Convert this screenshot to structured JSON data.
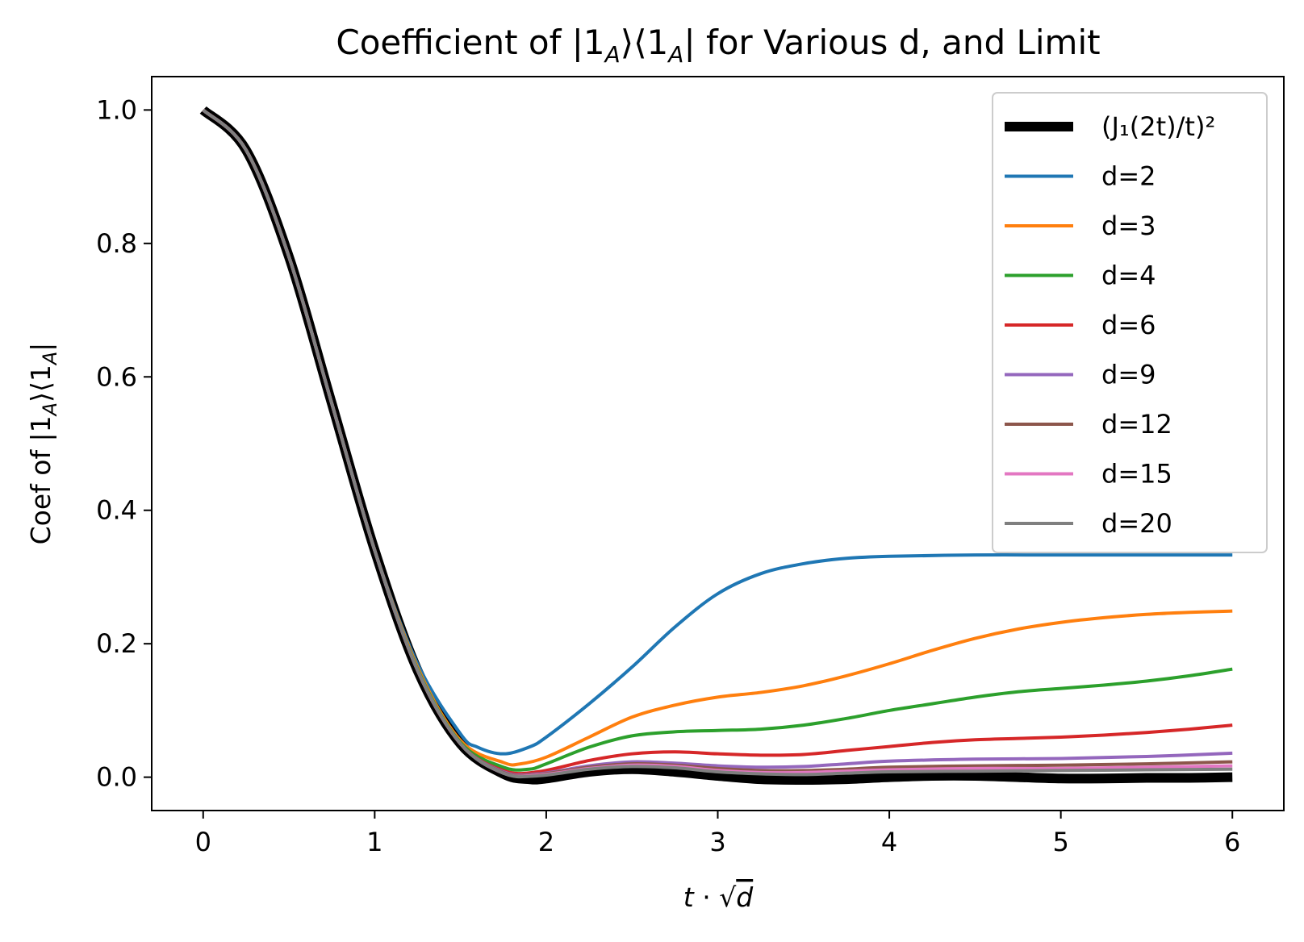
{
  "chart_data": {
    "type": "line",
    "title": "Coefficient of |1ₐ⟩⟨1ₐ| for Various d, and Limit",
    "xlabel": "t · √d",
    "ylabel": "Coef of |1ₐ⟩⟨1ₐ|",
    "xlim": [
      -0.3,
      6.3
    ],
    "ylim": [
      -0.05,
      1.05
    ],
    "xticks": [
      0,
      1,
      2,
      3,
      4,
      5,
      6
    ],
    "xtick_labels": [
      "0",
      "1",
      "2",
      "3",
      "4",
      "5",
      "6"
    ],
    "yticks": [
      0.0,
      0.2,
      0.4,
      0.6,
      0.8,
      1.0
    ],
    "ytick_labels": [
      "0.0",
      "0.2",
      "0.4",
      "0.6",
      "0.8",
      "1.0"
    ],
    "grid": false,
    "legend_position": "top-right",
    "series": [
      {
        "name": "(J₁(2t)/t)²",
        "color": "#000000",
        "thick": true,
        "x": [
          0,
          0.25,
          0.5,
          0.75,
          1.0,
          1.25,
          1.5,
          1.75,
          1.9,
          2.0,
          2.25,
          2.5,
          2.75,
          3.0,
          3.25,
          3.5,
          3.75,
          4.0,
          4.25,
          4.5,
          4.75,
          5.0,
          5.25,
          5.5,
          5.75,
          6.0
        ],
        "y": [
          1.0,
          0.94,
          0.78,
          0.56,
          0.34,
          0.16,
          0.05,
          0.005,
          -0.003,
          -0.002,
          0.008,
          0.012,
          0.008,
          0.002,
          -0.003,
          -0.004,
          -0.003,
          0.0,
          0.002,
          0.002,
          0.0,
          -0.002,
          -0.002,
          -0.001,
          -0.001,
          0.0
        ]
      },
      {
        "name": "d=2",
        "color": "#1f77b4",
        "x": [
          0,
          0.25,
          0.5,
          0.75,
          1.0,
          1.25,
          1.5,
          1.6,
          1.75,
          1.9,
          2.0,
          2.25,
          2.5,
          2.75,
          3.0,
          3.25,
          3.5,
          3.75,
          4.0,
          4.5,
          5.0,
          5.5,
          6.0
        ],
        "y": [
          1.0,
          0.94,
          0.78,
          0.56,
          0.34,
          0.17,
          0.065,
          0.045,
          0.035,
          0.045,
          0.06,
          0.11,
          0.165,
          0.225,
          0.275,
          0.305,
          0.32,
          0.328,
          0.331,
          0.333,
          0.333,
          0.333,
          0.333
        ]
      },
      {
        "name": "d=3",
        "color": "#ff7f0e",
        "x": [
          0,
          0.25,
          0.5,
          0.75,
          1.0,
          1.25,
          1.5,
          1.75,
          1.85,
          2.0,
          2.25,
          2.5,
          2.75,
          3.0,
          3.25,
          3.5,
          3.75,
          4.0,
          4.25,
          4.5,
          4.75,
          5.0,
          5.25,
          5.5,
          5.75,
          6.0
        ],
        "y": [
          1.0,
          0.94,
          0.78,
          0.56,
          0.34,
          0.165,
          0.055,
          0.022,
          0.02,
          0.03,
          0.06,
          0.09,
          0.108,
          0.12,
          0.127,
          0.137,
          0.152,
          0.17,
          0.19,
          0.208,
          0.222,
          0.232,
          0.239,
          0.244,
          0.247,
          0.249
        ]
      },
      {
        "name": "d=4",
        "color": "#2ca02c",
        "x": [
          0,
          0.25,
          0.5,
          0.75,
          1.0,
          1.25,
          1.5,
          1.75,
          1.9,
          2.0,
          2.25,
          2.5,
          2.75,
          3.0,
          3.25,
          3.5,
          3.75,
          4.0,
          4.25,
          4.5,
          4.75,
          5.0,
          5.25,
          5.5,
          5.75,
          6.0
        ],
        "y": [
          1.0,
          0.94,
          0.78,
          0.56,
          0.34,
          0.162,
          0.052,
          0.015,
          0.012,
          0.02,
          0.045,
          0.062,
          0.068,
          0.07,
          0.072,
          0.078,
          0.088,
          0.1,
          0.11,
          0.12,
          0.128,
          0.133,
          0.138,
          0.144,
          0.152,
          0.162
        ]
      },
      {
        "name": "d=6",
        "color": "#d62728",
        "x": [
          0,
          0.25,
          0.5,
          0.75,
          1.0,
          1.25,
          1.5,
          1.75,
          1.95,
          2.25,
          2.5,
          2.75,
          3.0,
          3.25,
          3.5,
          3.75,
          4.0,
          4.25,
          4.5,
          4.75,
          5.0,
          5.25,
          5.5,
          5.75,
          6.0
        ],
        "y": [
          1.0,
          0.94,
          0.78,
          0.56,
          0.34,
          0.16,
          0.05,
          0.01,
          0.008,
          0.025,
          0.035,
          0.038,
          0.035,
          0.033,
          0.034,
          0.04,
          0.046,
          0.052,
          0.056,
          0.058,
          0.06,
          0.063,
          0.067,
          0.072,
          0.078
        ]
      },
      {
        "name": "d=9",
        "color": "#9467bd",
        "x": [
          0,
          0.25,
          0.5,
          0.75,
          1.0,
          1.25,
          1.5,
          1.75,
          1.95,
          2.25,
          2.5,
          2.75,
          3.0,
          3.25,
          3.5,
          3.75,
          4.0,
          4.5,
          5.0,
          5.5,
          6.0
        ],
        "y": [
          1.0,
          0.94,
          0.78,
          0.56,
          0.34,
          0.16,
          0.05,
          0.008,
          0.005,
          0.017,
          0.023,
          0.021,
          0.017,
          0.015,
          0.016,
          0.02,
          0.024,
          0.027,
          0.028,
          0.031,
          0.036
        ]
      },
      {
        "name": "d=12",
        "color": "#8c564b",
        "x": [
          0,
          0.25,
          0.5,
          0.75,
          1.0,
          1.25,
          1.5,
          1.75,
          1.95,
          2.25,
          2.5,
          2.75,
          3.0,
          3.25,
          3.5,
          3.75,
          4.0,
          4.5,
          5.0,
          5.5,
          6.0
        ],
        "y": [
          1.0,
          0.94,
          0.78,
          0.56,
          0.34,
          0.16,
          0.05,
          0.007,
          0.004,
          0.015,
          0.02,
          0.018,
          0.013,
          0.01,
          0.01,
          0.012,
          0.015,
          0.017,
          0.018,
          0.02,
          0.023
        ]
      },
      {
        "name": "d=15",
        "color": "#e377c2",
        "x": [
          0,
          0.25,
          0.5,
          0.75,
          1.0,
          1.25,
          1.5,
          1.75,
          1.95,
          2.25,
          2.5,
          2.75,
          3.0,
          3.25,
          3.5,
          3.75,
          4.0,
          4.5,
          5.0,
          5.5,
          6.0
        ],
        "y": [
          1.0,
          0.94,
          0.78,
          0.56,
          0.34,
          0.16,
          0.05,
          0.006,
          0.003,
          0.013,
          0.018,
          0.016,
          0.01,
          0.007,
          0.007,
          0.009,
          0.011,
          0.013,
          0.013,
          0.015,
          0.017
        ]
      },
      {
        "name": "d=20",
        "color": "#7f7f7f",
        "x": [
          0,
          0.25,
          0.5,
          0.75,
          1.0,
          1.25,
          1.5,
          1.75,
          1.95,
          2.25,
          2.5,
          2.75,
          3.0,
          3.25,
          3.5,
          3.75,
          4.0,
          4.5,
          5.0,
          5.5,
          6.0
        ],
        "y": [
          1.0,
          0.94,
          0.78,
          0.56,
          0.34,
          0.16,
          0.05,
          0.006,
          0.002,
          0.012,
          0.016,
          0.014,
          0.008,
          0.005,
          0.004,
          0.006,
          0.008,
          0.009,
          0.01,
          0.011,
          0.012
        ]
      }
    ]
  }
}
